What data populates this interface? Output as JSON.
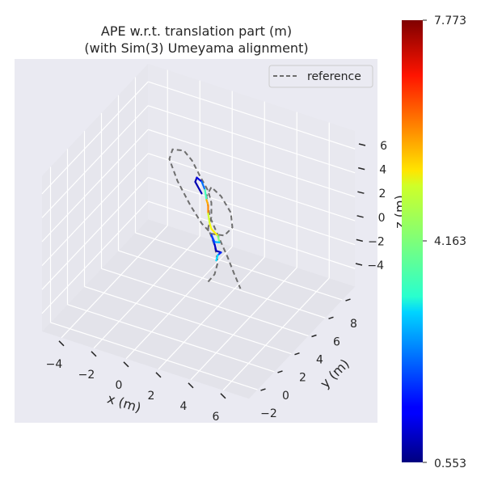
{
  "chart_data": {
    "type": "line3d",
    "title": "APE w.r.t. translation part (m)",
    "subtitle": "(with Sim(3) Umeyama alignment)",
    "xlabel": "x (m)",
    "ylabel": "y (m)",
    "zlabel": "z (m)",
    "xlim": [
      -5.2,
      7.6
    ],
    "ylim": [
      -3,
      9.5
    ],
    "zlim": [
      -5.5,
      7.5
    ],
    "xticks": [
      "−4",
      "−2",
      "0",
      "2",
      "4",
      "6"
    ],
    "xtick_values": [
      -4,
      -2,
      0,
      2,
      4,
      6
    ],
    "yticks": [
      "−2",
      "0",
      "2",
      "4",
      "6",
      "8"
    ],
    "ytick_values": [
      -2,
      0,
      2,
      4,
      6,
      8
    ],
    "zticks": [
      "6",
      "4",
      "2",
      "0",
      "−2",
      "−4"
    ],
    "ztick_values": [
      6,
      4,
      2,
      0,
      -2,
      -4
    ],
    "grid": true,
    "background": "#eaeaf2",
    "legend": {
      "position": "top-right",
      "entries": [
        "reference"
      ]
    },
    "reference": {
      "name": "reference",
      "style": "dashed",
      "color": "#6e6e6e",
      "points": [
        [
          1.4,
          4,
          -3.7
        ],
        [
          1.8,
          4,
          -2.9
        ],
        [
          2.0,
          4,
          -1.8
        ],
        [
          1.8,
          4,
          -0.5
        ],
        [
          1.4,
          4,
          0.8
        ],
        [
          1.6,
          4,
          1.8
        ],
        [
          1.6,
          4,
          3.0
        ],
        [
          1.4,
          4,
          3.9
        ],
        [
          0.9,
          4,
          4.9
        ],
        [
          0.4,
          4,
          6.0
        ],
        [
          -0.1,
          4,
          6.6
        ],
        [
          -0.8,
          4,
          6.4
        ],
        [
          -1.0,
          4,
          5.5
        ],
        [
          -0.5,
          4,
          3.9
        ],
        [
          0.3,
          4,
          2.2
        ],
        [
          1.0,
          4,
          1.0
        ],
        [
          1.6,
          4,
          0.4
        ],
        [
          2.4,
          4,
          0.6
        ],
        [
          2.9,
          4,
          1.5
        ],
        [
          2.8,
          4,
          2.7
        ],
        [
          2.2,
          4,
          3.8
        ],
        [
          1.6,
          4,
          4.3
        ],
        [
          1.3,
          4,
          3.4
        ],
        [
          1.5,
          4,
          1.8
        ],
        [
          2.1,
          4,
          0.2
        ],
        [
          2.6,
          4,
          -1.1
        ],
        [
          3.0,
          4,
          -2.3
        ],
        [
          3.4,
          4,
          -3.4
        ]
      ]
    },
    "estimate": {
      "colormap": "jet",
      "points": [
        [
          1.0,
          4,
          3.5
        ],
        [
          0.6,
          4,
          4.3
        ],
        [
          0.7,
          4,
          4.7
        ],
        [
          1.0,
          4,
          4.5
        ],
        [
          1.2,
          4,
          3.9
        ],
        [
          1.3,
          4,
          3.1
        ],
        [
          1.4,
          4,
          2.7
        ],
        [
          1.4,
          4,
          2.0
        ],
        [
          1.5,
          4,
          1.2
        ],
        [
          1.6,
          4,
          0.8
        ],
        [
          2.0,
          4,
          0.4
        ],
        [
          2.1,
          4,
          -0.1
        ],
        [
          1.8,
          4,
          -0.2
        ],
        [
          1.6,
          4,
          0.3
        ],
        [
          1.8,
          4,
          -0.4
        ],
        [
          1.9,
          4,
          -0.9
        ],
        [
          2.2,
          4,
          -0.9
        ],
        [
          2.0,
          4,
          -1.2
        ],
        [
          1.9,
          4,
          -1.7
        ]
      ],
      "ape": [
        1.0,
        0.8,
        1.0,
        1.5,
        3.0,
        4.5,
        6.8,
        5.0,
        4.5,
        5.5,
        4.8,
        3.5,
        2.0,
        2.5,
        1.2,
        0.9,
        1.0,
        2.5,
        3.5
      ]
    },
    "colorbar": {
      "min": 0.553,
      "mid": 4.163,
      "max": 7.773,
      "labels": [
        "7.773",
        "4.163",
        "0.553"
      ]
    }
  }
}
